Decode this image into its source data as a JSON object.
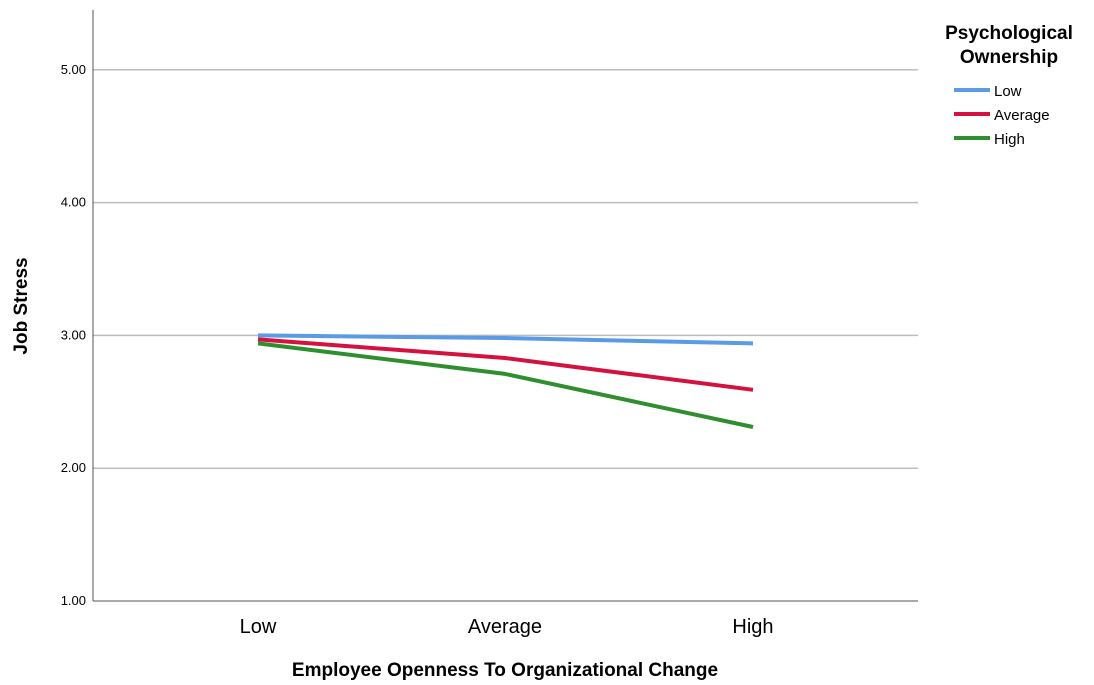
{
  "chart_data": {
    "type": "line",
    "title": "",
    "xlabel": "Employee Openness To Organizational Change",
    "ylabel": "Job Stress",
    "categories": [
      "Low",
      "Average",
      "High"
    ],
    "ylim": [
      1,
      5.45
    ],
    "yticks": [
      "1.00",
      "2.00",
      "3.00",
      "4.00",
      "5.00"
    ],
    "grid": true,
    "legend_title": [
      "Psychological",
      "Ownership"
    ],
    "legend_position": "top-right",
    "series": [
      {
        "name": "Low",
        "color": "#5b9be6",
        "values": [
          3.0,
          2.98,
          2.94
        ]
      },
      {
        "name": "Average",
        "color": "#d4123f",
        "values": [
          2.97,
          2.83,
          2.59
        ]
      },
      {
        "name": "High",
        "color": "#2f8f2f",
        "values": [
          2.94,
          2.71,
          2.31
        ]
      }
    ]
  }
}
